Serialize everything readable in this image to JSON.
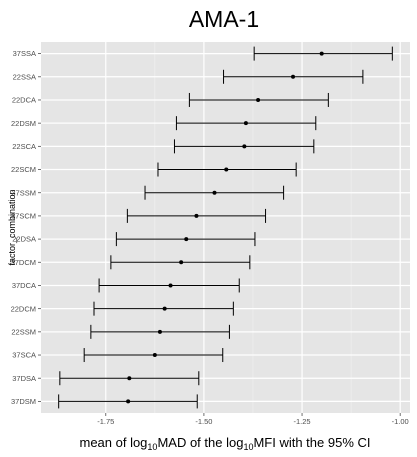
{
  "chart_data": {
    "type": "scatter",
    "title": "AMA-1",
    "xlabel": {
      "parts": [
        {
          "text": "mean of log",
          "sub": false
        },
        {
          "text": "10",
          "sub": true
        },
        {
          "text": "MAD of  the log",
          "sub": false
        },
        {
          "text": "10",
          "sub": true
        },
        {
          "text": "MFI with the 95% CI",
          "sub": false
        }
      ]
    },
    "ylabel": "factor_combination",
    "xlim": [
      -1.915,
      -0.975
    ],
    "xticks": [
      -1.75,
      -1.5,
      -1.25,
      -1.0
    ],
    "xtick_labels": [
      "-1.75",
      "-1.50",
      "-1.25",
      "-1.00"
    ],
    "grid": true,
    "background": "#e5e5e5",
    "grid_color": "#ffffff",
    "point_color": "#000000",
    "categories": [
      "37SSA",
      "22SSA",
      "22DCA",
      "22DSM",
      "22SCA",
      "22SCM",
      "37SSM",
      "37SCM",
      "22DSA",
      "37DCM",
      "37DCA",
      "22DCM",
      "22SSM",
      "37SCA",
      "37DSA",
      "37DSM"
    ],
    "series": [
      {
        "mean": [
          -1.2,
          -1.273,
          -1.362,
          -1.393,
          -1.397,
          -1.443,
          -1.473,
          -1.519,
          -1.545,
          -1.558,
          -1.585,
          -1.6,
          -1.612,
          -1.625,
          -1.69,
          -1.693
        ],
        "lower": [
          -1.372,
          -1.45,
          -1.537,
          -1.57,
          -1.575,
          -1.617,
          -1.65,
          -1.695,
          -1.723,
          -1.737,
          -1.767,
          -1.78,
          -1.788,
          -1.805,
          -1.867,
          -1.87
        ],
        "upper": [
          -1.02,
          -1.095,
          -1.183,
          -1.215,
          -1.22,
          -1.265,
          -1.297,
          -1.343,
          -1.37,
          -1.383,
          -1.41,
          -1.425,
          -1.435,
          -1.452,
          -1.513,
          -1.517
        ]
      }
    ]
  }
}
